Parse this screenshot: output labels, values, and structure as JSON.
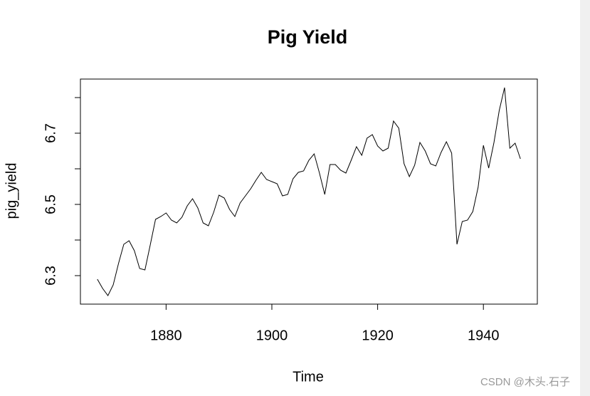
{
  "chart_data": {
    "type": "line",
    "title": "Pig Yield",
    "xlabel": "Time",
    "ylabel": "pig_yield",
    "x": [
      1867,
      1868,
      1869,
      1870,
      1871,
      1872,
      1873,
      1874,
      1875,
      1876,
      1877,
      1878,
      1879,
      1880,
      1881,
      1882,
      1883,
      1884,
      1885,
      1886,
      1887,
      1888,
      1889,
      1890,
      1891,
      1892,
      1893,
      1894,
      1895,
      1896,
      1897,
      1898,
      1899,
      1900,
      1901,
      1902,
      1903,
      1904,
      1905,
      1906,
      1907,
      1908,
      1909,
      1910,
      1911,
      1912,
      1913,
      1914,
      1915,
      1916,
      1917,
      1918,
      1919,
      1920,
      1921,
      1922,
      1923,
      1924,
      1925,
      1926,
      1927,
      1928,
      1929,
      1930,
      1931,
      1932,
      1933,
      1934,
      1935,
      1936,
      1937,
      1938,
      1939,
      1940,
      1941,
      1942,
      1943,
      1944,
      1945,
      1946,
      1947
    ],
    "values": [
      6.29,
      6.264,
      6.244,
      6.274,
      6.334,
      6.388,
      6.398,
      6.37,
      6.32,
      6.316,
      6.386,
      6.458,
      6.466,
      6.476,
      6.456,
      6.448,
      6.464,
      6.496,
      6.516,
      6.49,
      6.448,
      6.44,
      6.478,
      6.526,
      6.518,
      6.486,
      6.466,
      6.504,
      6.524,
      6.544,
      6.568,
      6.59,
      6.57,
      6.564,
      6.558,
      6.524,
      6.528,
      6.572,
      6.59,
      6.594,
      6.624,
      6.642,
      6.588,
      6.528,
      6.612,
      6.612,
      6.596,
      6.588,
      6.624,
      6.662,
      6.638,
      6.686,
      6.696,
      6.664,
      6.65,
      6.658,
      6.734,
      6.714,
      6.614,
      6.578,
      6.61,
      6.674,
      6.65,
      6.614,
      6.608,
      6.646,
      6.676,
      6.644,
      6.388,
      6.452,
      6.456,
      6.48,
      6.548,
      6.666,
      6.602,
      6.674,
      6.764,
      6.828,
      6.658,
      6.672,
      6.628
    ],
    "color": "#000000",
    "xlim": [
      1863.8,
      1950.2
    ],
    "xticks": [
      1880,
      1900,
      1920,
      1940
    ],
    "ylim": [
      6.22,
      6.852
    ],
    "yticks": [
      6.3,
      6.5,
      6.7
    ],
    "y_minor_ticks": [
      6.4,
      6.6,
      6.8
    ]
  },
  "watermark": "CSDN @木头.石子"
}
